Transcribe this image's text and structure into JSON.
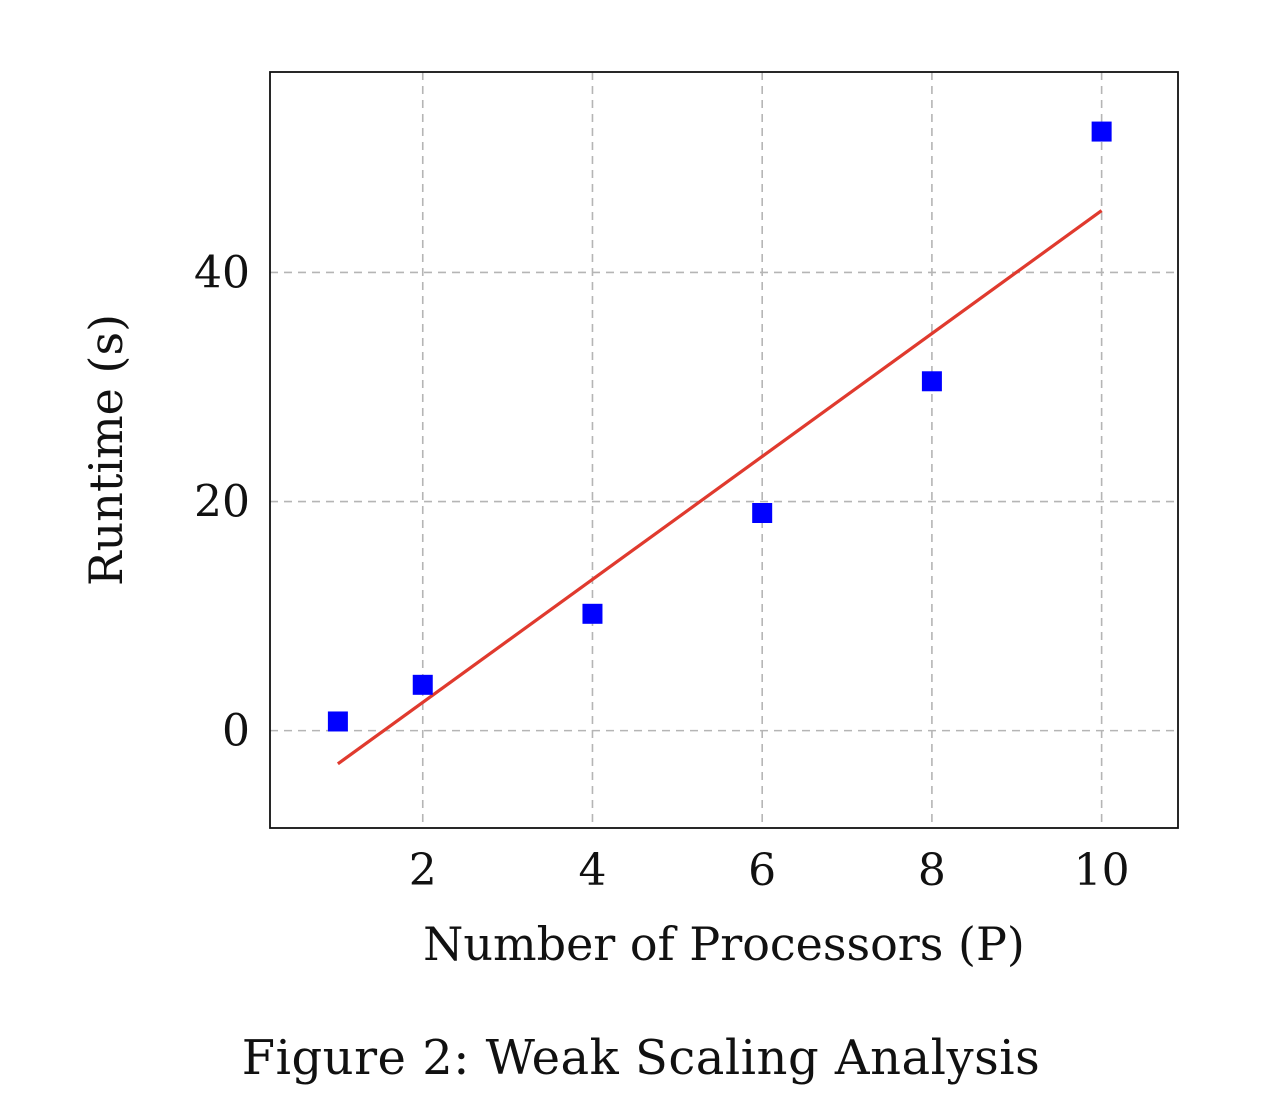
{
  "chart_data": {
    "type": "scatter",
    "title": "",
    "xlabel": "Number of Processors (P)",
    "ylabel": "Runtime (s)",
    "xlim": [
      0.2,
      10.9
    ],
    "ylim": [
      -8.5,
      57.5
    ],
    "xticks": [
      2,
      4,
      6,
      8,
      10
    ],
    "yticks": [
      0,
      20,
      40
    ],
    "grid": true,
    "grid_style": "dashed",
    "legend": "none",
    "series": [
      {
        "type": "scatter",
        "marker": "square",
        "color": "#0000ff",
        "x": [
          1,
          2,
          4,
          6,
          8,
          10
        ],
        "y": [
          0.8,
          4.0,
          10.2,
          19.0,
          30.5,
          52.3
        ]
      },
      {
        "type": "line",
        "color": "#e03a2e",
        "x": [
          1,
          10
        ],
        "y": [
          -2.9,
          45.4
        ]
      }
    ]
  },
  "caption": "Figure 2:  Weak Scaling Analysis"
}
